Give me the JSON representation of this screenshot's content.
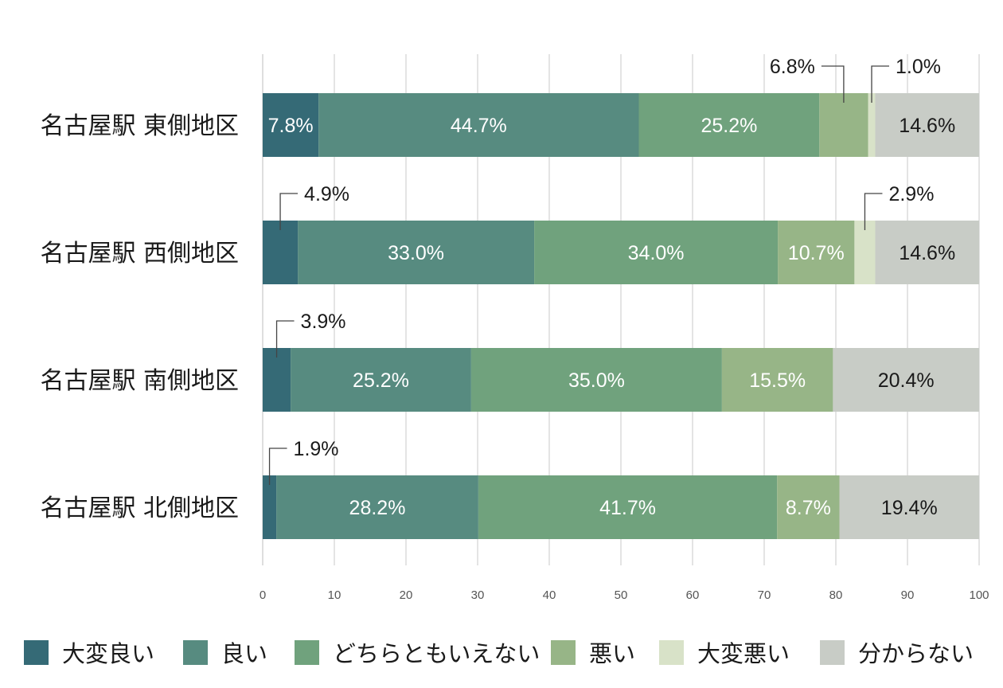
{
  "chart_data": {
    "type": "bar",
    "orientation": "horizontal",
    "stacked": true,
    "categories": [
      "名古屋駅 東側地区",
      "名古屋駅 西側地区",
      "名古屋駅 南側地区",
      "名古屋駅 北側地区"
    ],
    "series": [
      {
        "name": "大変良い",
        "color": "#356a76",
        "values": [
          7.8,
          4.9,
          3.9,
          1.9
        ],
        "labels": [
          "7.8%",
          "4.9%",
          "3.9%",
          "1.9%"
        ]
      },
      {
        "name": "良い",
        "color": "#578b80",
        "values": [
          44.7,
          33.0,
          25.2,
          28.2
        ],
        "labels": [
          "44.7%",
          "33.0%",
          "25.2%",
          "28.2%"
        ]
      },
      {
        "name": "どちらともいえない",
        "color": "#70a27d",
        "values": [
          25.2,
          34.0,
          35.0,
          41.7
        ],
        "labels": [
          "25.2%",
          "34.0%",
          "35.0%",
          "41.7%"
        ]
      },
      {
        "name": "悪い",
        "color": "#97b587",
        "values": [
          6.8,
          10.7,
          15.5,
          8.7
        ],
        "labels": [
          "6.8%",
          "10.7%",
          "15.5%",
          "8.7%"
        ]
      },
      {
        "name": "大変悪い",
        "color": "#d8e2c8",
        "values": [
          1.0,
          2.9,
          0,
          0
        ],
        "labels": [
          "1.0%",
          "2.9%",
          "",
          ""
        ]
      },
      {
        "name": "分からない",
        "color": "#c8ccc6",
        "values": [
          14.6,
          14.6,
          20.4,
          19.4
        ],
        "labels": [
          "14.6%",
          "14.6%",
          "20.4%",
          "19.4%"
        ]
      }
    ],
    "xlim": [
      0,
      100
    ],
    "xticks": [
      "0",
      "10",
      "20",
      "30",
      "40",
      "50",
      "60",
      "70",
      "80",
      "90",
      "100"
    ],
    "grid": true,
    "legend": "bottom",
    "xlabel": "",
    "ylabel": "",
    "title": ""
  }
}
